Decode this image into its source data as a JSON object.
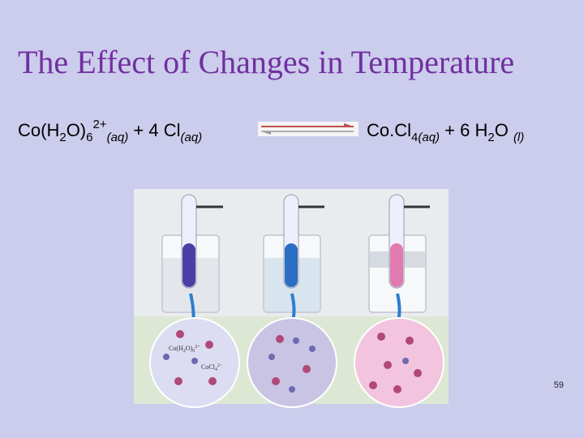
{
  "header": {
    "title": "The Effect of Changes in Temperature"
  },
  "equation": {
    "reactants": [
      "Co(H",
      "2",
      "O)",
      "6",
      "2+",
      "(aq)",
      " + 4 Cl",
      "(aq)"
    ],
    "products": [
      "Co.Cl",
      "4",
      "(aq)",
      " + 6 H",
      "2",
      "O ",
      "(l)"
    ]
  },
  "figure": {
    "labels": [
      [
        "Co(H",
        "2",
        "O)",
        "6",
        "2+"
      ],
      [
        "CoCl",
        "4",
        "2−"
      ]
    ]
  },
  "footer": {
    "page_number": "59"
  }
}
